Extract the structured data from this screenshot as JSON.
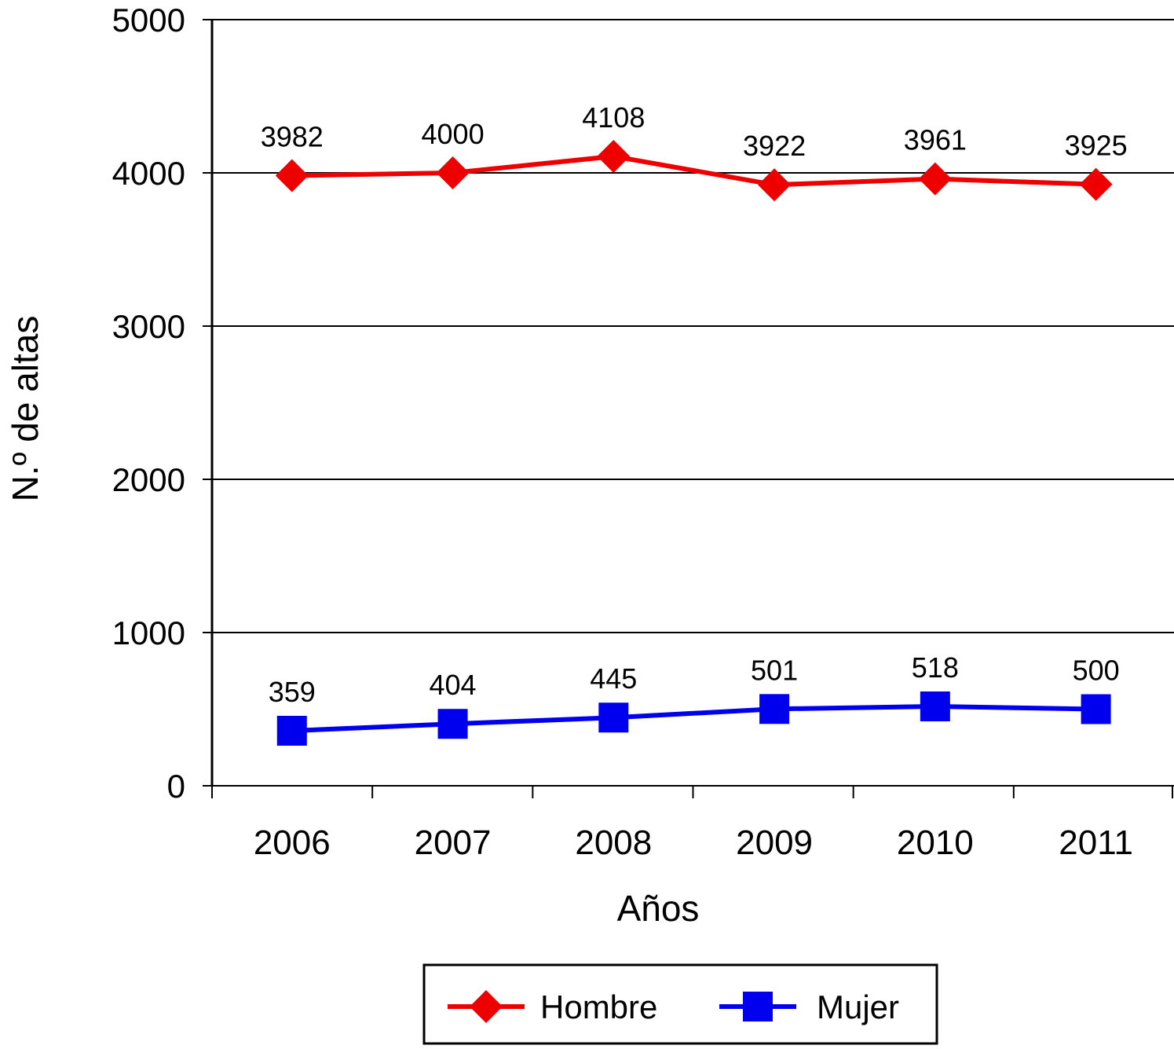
{
  "chart_data": {
    "type": "line",
    "categories": [
      "2006",
      "2007",
      "2008",
      "2009",
      "2010",
      "2011"
    ],
    "series": [
      {
        "name": "Hombre",
        "values": [
          3982,
          4000,
          4108,
          3922,
          3961,
          3925
        ],
        "color": "#ee0000",
        "marker": "diamond"
      },
      {
        "name": "Mujer",
        "values": [
          359,
          404,
          445,
          501,
          518,
          500
        ],
        "color": "#0000ee",
        "marker": "square"
      }
    ],
    "data_labels": true,
    "title": "",
    "xlabel": "Años",
    "ylabel": "N.º de altas",
    "ylim": [
      0,
      5000
    ],
    "yticks": [
      0,
      1000,
      2000,
      3000,
      4000,
      5000
    ],
    "grid": "horizontal",
    "legend_position": "bottom"
  }
}
